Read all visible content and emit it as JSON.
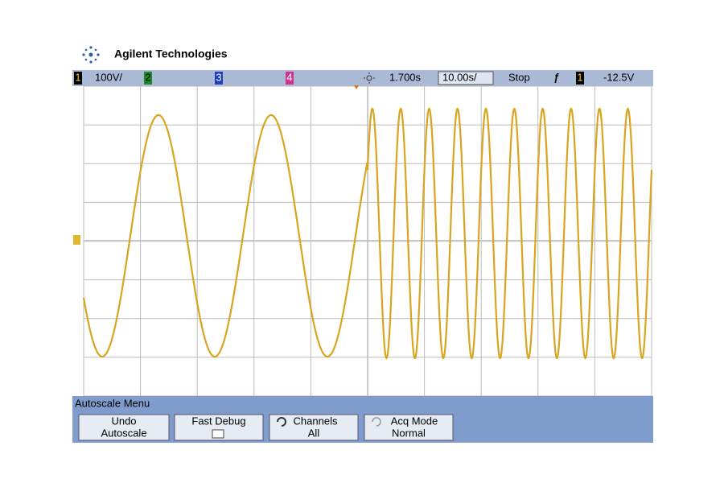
{
  "header": {
    "brand": "Agilent Technologies"
  },
  "status": {
    "channels": [
      {
        "number": "1",
        "scale": "100V/"
      },
      {
        "number": "2"
      },
      {
        "number": "3"
      },
      {
        "number": "4"
      }
    ],
    "delay": "1.700s",
    "timebase": "10.00s/",
    "run_state": "Stop",
    "trigger_source": "1",
    "trigger_level": "-12.5V"
  },
  "menu": {
    "title": "Autoscale Menu",
    "softkeys": [
      {
        "line1": "Undo",
        "line2": "Autoscale"
      },
      {
        "line1": "Fast Debug"
      },
      {
        "line1": "Channels",
        "line2": "All"
      },
      {
        "line1": "Acq Mode",
        "line2": "Normal"
      }
    ]
  }
}
